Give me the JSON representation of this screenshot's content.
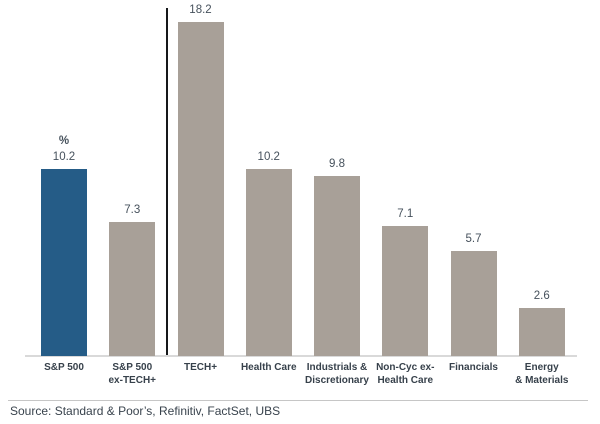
{
  "chart_data": {
    "type": "bar",
    "title": "",
    "unit_label": "%",
    "unit_label_index": 0,
    "categories": [
      "S&P 500",
      "S&P 500\nex-TECH+",
      "TECH+",
      "Health Care",
      "Industrials &\nDiscretionary",
      "Non-Cyc ex-\nHealth Care",
      "Financials",
      "Energy\n& Materials"
    ],
    "values": [
      10.2,
      7.3,
      18.2,
      10.2,
      9.8,
      7.1,
      5.7,
      2.6
    ],
    "value_labels": [
      "10.2",
      "7.3",
      "18.2",
      "10.2",
      "9.8",
      "7.1",
      "5.7",
      "2.6"
    ],
    "highlight_index": 0,
    "divider_after_index": 1,
    "ylim": [
      0,
      19
    ],
    "grid": false,
    "legend": false,
    "colors": {
      "highlight": "#255c87",
      "default": "#a8a098",
      "axis": "#d9d9d9",
      "divider": "#16181a"
    }
  },
  "footer": {
    "source": "Source: Standard & Poor’s, Refinitiv, FactSet, UBS"
  }
}
